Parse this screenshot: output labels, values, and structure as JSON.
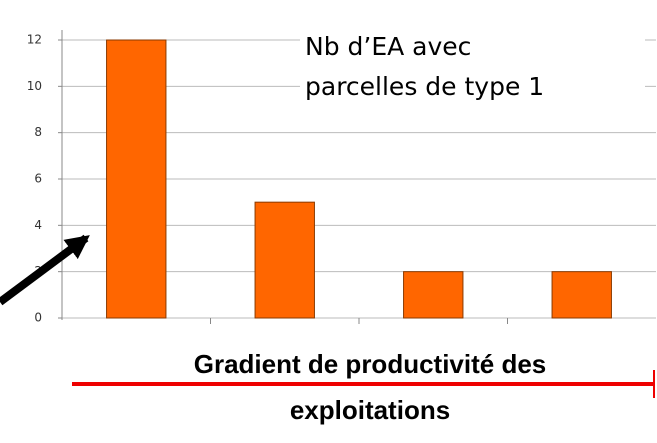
{
  "chart_data": {
    "type": "bar",
    "categories": [
      null,
      null,
      null,
      null
    ],
    "values": [
      12,
      5,
      2,
      2
    ],
    "color": "#ff6600",
    "ylim": [
      0,
      12
    ],
    "yticks": [
      0,
      2,
      4,
      6,
      8,
      10,
      12
    ],
    "grid": true,
    "annotation": [
      "Nb d’EA avec",
      "parcelles de type 1"
    ],
    "xlabel": [
      "Gradient de productivité des",
      "exploitations"
    ]
  }
}
